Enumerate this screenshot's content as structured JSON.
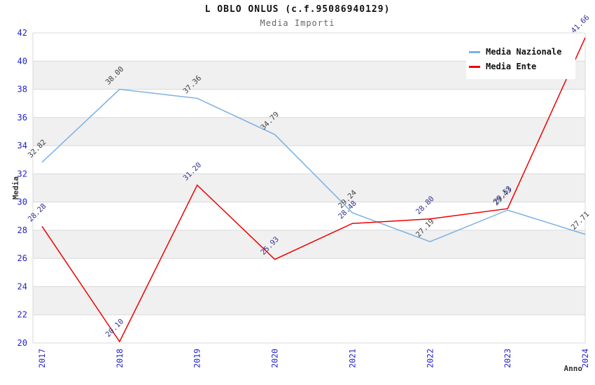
{
  "chart_data": {
    "type": "line",
    "title": "L OBLO ONLUS (c.f.95086940129)",
    "subtitle": "Media Importi",
    "xlabel": "Anno",
    "ylabel": "Media",
    "x": [
      "2017",
      "2018",
      "2019",
      "2020",
      "2021",
      "2022",
      "2023",
      "2024"
    ],
    "series": [
      {
        "name": "Media Nazionale",
        "color": "#7BB0E3",
        "label_color": "#404040",
        "values": [
          32.82,
          38.0,
          37.36,
          34.79,
          29.24,
          27.19,
          29.43,
          27.71
        ]
      },
      {
        "name": "Media Ente",
        "color": "#EE0000",
        "label_color": "#333399",
        "values": [
          28.28,
          20.1,
          31.2,
          25.93,
          28.48,
          28.8,
          29.53,
          41.66
        ]
      }
    ],
    "ylim": [
      20,
      42
    ],
    "ytick_step": 2,
    "grid": true,
    "band_color": "#F0F0F0",
    "grid_color": "#D9D9D9",
    "axis_text_color": "#2222CC",
    "axis_title_color": "#333333",
    "legend_position": "top-right",
    "value_decimals": 2
  }
}
